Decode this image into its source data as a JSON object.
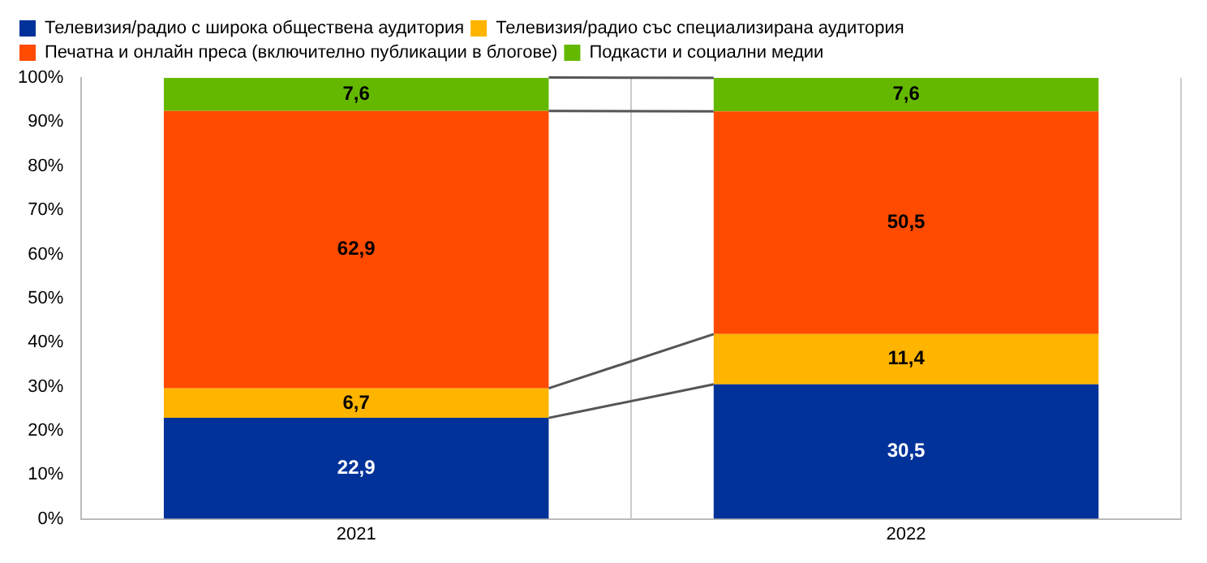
{
  "chart_data": {
    "type": "bar",
    "stacked": true,
    "categories": [
      "2021",
      "2022"
    ],
    "series": [
      {
        "name": "Телевизия/радио с широка обществена аудитория",
        "color": "#003299",
        "values": [
          22.9,
          30.5
        ],
        "value_labels": [
          "22,9",
          "30,5"
        ]
      },
      {
        "name": "Телевизия/радио със специализирана аудитория",
        "color": "#ffb400",
        "values": [
          6.7,
          11.4
        ],
        "value_labels": [
          "6,7",
          "11,4"
        ]
      },
      {
        "name": "Печатна и онлайн преса (включително публикации в блогове)",
        "color": "#ff4b00",
        "values": [
          62.9,
          50.5
        ],
        "value_labels": [
          "62,9",
          "50,5"
        ]
      },
      {
        "name": "Подкасти и социални медии",
        "color": "#65b800",
        "values": [
          7.6,
          7.6
        ],
        "value_labels": [
          "7,6",
          "7,6"
        ]
      }
    ],
    "ylim": [
      0,
      100
    ],
    "yticks": [
      {
        "value": 0,
        "label": "0%"
      },
      {
        "value": 10,
        "label": "10%"
      },
      {
        "value": 20,
        "label": "20%"
      },
      {
        "value": 30,
        "label": "30%"
      },
      {
        "value": 40,
        "label": "40%"
      },
      {
        "value": 50,
        "label": "50%"
      },
      {
        "value": 60,
        "label": "60%"
      },
      {
        "value": 70,
        "label": "70%"
      },
      {
        "value": 80,
        "label": "80%"
      },
      {
        "value": 90,
        "label": "90%"
      },
      {
        "value": 100,
        "label": "100%"
      }
    ],
    "grid": "x",
    "legend": "top left"
  }
}
